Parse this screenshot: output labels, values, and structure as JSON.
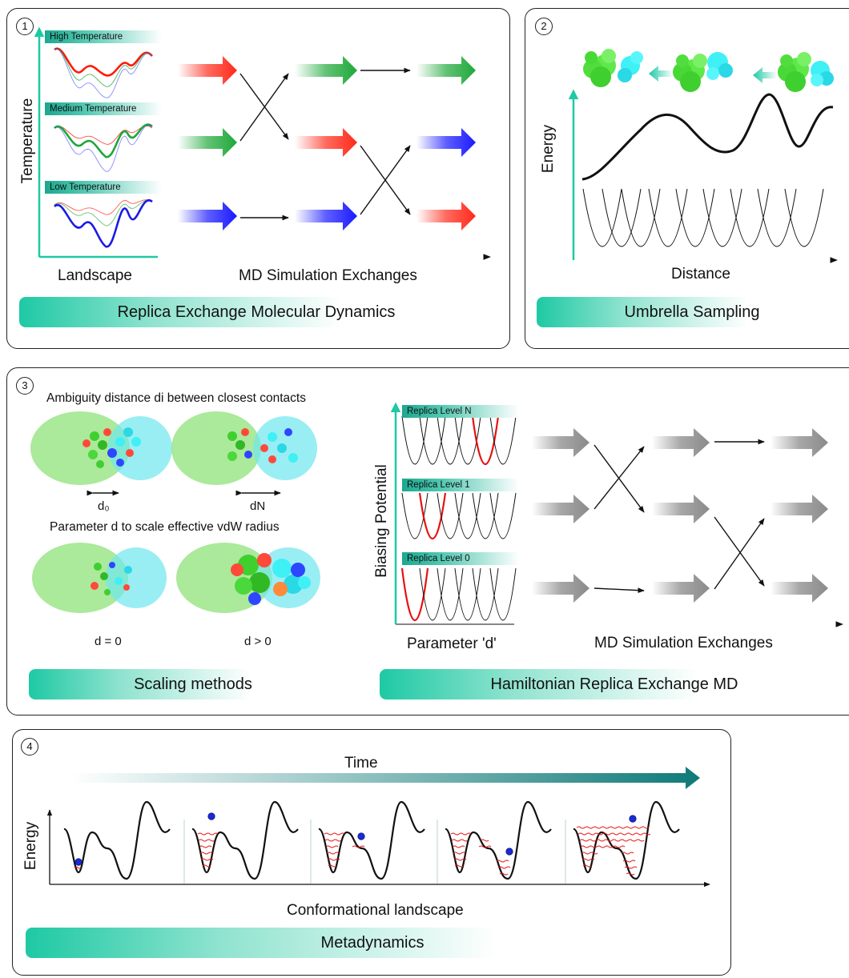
{
  "panel1": {
    "number": "1",
    "y_label": "Temperature",
    "tags": [
      "High Temperature",
      "Medium Temperature",
      "Low Temperature"
    ],
    "x_label_left": "Landscape",
    "x_label_right": "MD Simulation Exchanges",
    "banner": "Replica Exchange Molecular Dynamics"
  },
  "panel2": {
    "number": "2",
    "y_label": "Energy",
    "x_label": "Distance",
    "banner": "Umbrella Sampling"
  },
  "panel3": {
    "number": "3",
    "title_top": "Ambiguity distance di between closest contacts",
    "d0_label": "d₀",
    "dn_label": "dN",
    "title_mid": "Parameter d to scale effective vdW radius",
    "d_zero_label": "d = 0",
    "d_pos_label": "d > 0",
    "y_label": "Biasing Potential",
    "tags": [
      "Replica Level N",
      "Replica Level 1",
      "Replica Level 0"
    ],
    "x_label_left": "Parameter 'd'",
    "x_label_right": "MD Simulation Exchanges",
    "banner_left": "Scaling methods",
    "banner_right": "Hamiltonian Replica Exchange MD"
  },
  "panel4": {
    "number": "4",
    "time_label": "Time",
    "y_label": "Energy",
    "x_label": "Conformational landscape",
    "banner": "Metadynamics"
  },
  "colors": {
    "teal": "#1ec9a4",
    "red": "#ff2a1a",
    "green": "#1fa83a",
    "blue": "#1a1aff",
    "gray": "#8a8a8a",
    "protein_green": "#6ee85a",
    "protein_cyan": "#3ff0f5"
  }
}
